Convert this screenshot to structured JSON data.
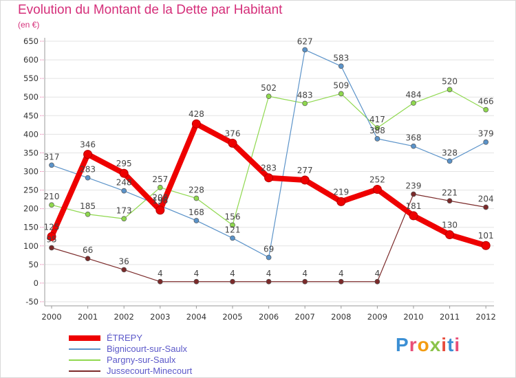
{
  "title": "Evolution du Montant de la Dette par Habitant",
  "unit_label": "(en €)",
  "brand": {
    "text": "Proxiti",
    "letter_colors": [
      "#3b8fd4",
      "#e94e77",
      "#f39c12",
      "#8bc34a",
      "#e74c3c",
      "#3b8fd4",
      "#e94e77"
    ]
  },
  "chart_data": {
    "type": "line",
    "title": "Evolution du Montant de la Dette par Habitant",
    "ylabel": "(en €)",
    "xlabel": "",
    "x": [
      "2000",
      "2001",
      "2002",
      "2003",
      "2004",
      "2005",
      "2006",
      "2007",
      "2008",
      "2009",
      "2010",
      "2011",
      "2012"
    ],
    "ylim": [
      -50,
      650
    ],
    "yticks": [
      "650",
      "600",
      "550",
      "500",
      "450",
      "400",
      "350",
      "300",
      "250",
      "200",
      "150",
      "100",
      "50",
      "0",
      "-50"
    ],
    "grid": "horizontal",
    "legend_position": "bottom-left",
    "series": [
      {
        "name": "Jussecourt-Minecourt",
        "color": "#7b2a2a",
        "values": [
          95,
          66,
          36,
          4,
          4,
          4,
          4,
          4,
          4,
          4,
          239,
          221,
          204
        ],
        "labels": [
          "95",
          "66",
          "36",
          "4",
          "4",
          "4",
          "4",
          "4",
          "4",
          "4",
          "239",
          "221",
          "204"
        ]
      },
      {
        "name": "Pargny-sur-Saulx",
        "color": "#8fd84e",
        "values": [
          210,
          185,
          173,
          257,
          228,
          156,
          502,
          483,
          509,
          417,
          484,
          520,
          466
        ],
        "labels": [
          "210",
          "185",
          "173",
          "257",
          "228",
          "156",
          "502",
          "483",
          "509",
          "417",
          "484",
          "520",
          "466"
        ]
      },
      {
        "name": "Bignicourt-sur-Saulx",
        "color": "#5b93c9",
        "values": [
          317,
          283,
          248,
          208,
          168,
          121,
          69,
          627,
          583,
          388,
          368,
          328,
          379
        ],
        "labels": [
          "317",
          "283",
          "248",
          "208",
          "168",
          "121",
          "69",
          "627",
          "583",
          "388",
          "368",
          "328",
          "379"
        ]
      },
      {
        "name": "ÉTREPY",
        "color": "#ee0000",
        "values": [
          125,
          346,
          295,
          196,
          428,
          376,
          283,
          277,
          219,
          252,
          181,
          130,
          101
        ],
        "labels": [
          "125",
          "346",
          "295",
          "196",
          "428",
          "376",
          "283",
          "277",
          "219",
          "252",
          "181",
          "130",
          "101"
        ]
      }
    ]
  }
}
